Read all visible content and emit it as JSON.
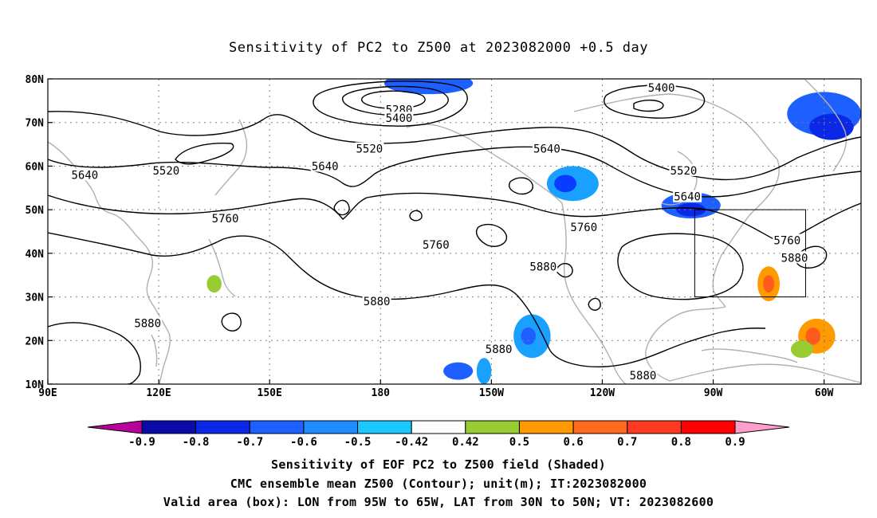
{
  "title": "Sensitivity of PC2 to Z500 at 2023082000 +0.5 day",
  "map": {
    "lon_range": [
      90,
      310
    ],
    "lat_range": [
      10,
      80
    ],
    "lon_ticks": [
      {
        "lon": 90,
        "label": "90E"
      },
      {
        "lon": 120,
        "label": "120E"
      },
      {
        "lon": 150,
        "label": "150E"
      },
      {
        "lon": 180,
        "label": "180"
      },
      {
        "lon": 210,
        "label": "150W"
      },
      {
        "lon": 240,
        "label": "120W"
      },
      {
        "lon": 270,
        "label": "90W"
      },
      {
        "lon": 300,
        "label": "60W"
      }
    ],
    "lat_ticks": [
      {
        "lat": 80,
        "label": "80N"
      },
      {
        "lat": 70,
        "label": "70N"
      },
      {
        "lat": 60,
        "label": "60N"
      },
      {
        "lat": 50,
        "label": "50N"
      },
      {
        "lat": 40,
        "label": "40N"
      },
      {
        "lat": 30,
        "label": "30N"
      },
      {
        "lat": 20,
        "label": "20N"
      },
      {
        "lat": 10,
        "label": "10N"
      }
    ],
    "grid_lons": [
      120,
      150,
      180,
      210,
      240,
      270,
      300
    ],
    "grid_lats": [
      20,
      30,
      40,
      50,
      60,
      70
    ],
    "valid_box": {
      "lon_min": 265,
      "lon_max": 295,
      "lat_min": 30,
      "lat_max": 50
    },
    "contour_labels": [
      {
        "text": "5280",
        "lon": 185,
        "lat": 73
      },
      {
        "text": "5400",
        "lon": 185,
        "lat": 71
      },
      {
        "text": "5400",
        "lon": 256,
        "lat": 78
      },
      {
        "text": "5520",
        "lon": 177,
        "lat": 64
      },
      {
        "text": "5520",
        "lon": 122,
        "lat": 59
      },
      {
        "text": "5520",
        "lon": 262,
        "lat": 59
      },
      {
        "text": "5640",
        "lon": 100,
        "lat": 58
      },
      {
        "text": "5640",
        "lon": 165,
        "lat": 60
      },
      {
        "text": "5640",
        "lon": 225,
        "lat": 64
      },
      {
        "text": "5640",
        "lon": 263,
        "lat": 53
      },
      {
        "text": "5760",
        "lon": 138,
        "lat": 48
      },
      {
        "text": "5760",
        "lon": 195,
        "lat": 42
      },
      {
        "text": "5760",
        "lon": 235,
        "lat": 46
      },
      {
        "text": "5760",
        "lon": 290,
        "lat": 43
      },
      {
        "text": "5880",
        "lon": 224,
        "lat": 37
      },
      {
        "text": "5880",
        "lon": 179,
        "lat": 29
      },
      {
        "text": "5880",
        "lon": 117,
        "lat": 24
      },
      {
        "text": "5880",
        "lon": 212,
        "lat": 18
      },
      {
        "text": "5880",
        "lon": 292,
        "lat": 39
      },
      {
        "text": "5880",
        "lon": 251,
        "lat": 12
      }
    ],
    "shaded_regions": [
      {
        "lon": 193,
        "lat": 79,
        "rx": 12,
        "ry": 2.5,
        "color": "#1e5fff"
      },
      {
        "lon": 300,
        "lat": 72,
        "rx": 10,
        "ry": 5,
        "color": "#1e5fff"
      },
      {
        "lon": 302,
        "lat": 69,
        "rx": 6,
        "ry": 3,
        "color": "#0a28e6"
      },
      {
        "lon": 232,
        "lat": 56,
        "rx": 7,
        "ry": 4,
        "color": "#1aa0ff"
      },
      {
        "lon": 230,
        "lat": 56,
        "rx": 3,
        "ry": 2,
        "color": "#0a3cff"
      },
      {
        "lon": 264,
        "lat": 51,
        "rx": 8,
        "ry": 3,
        "color": "#1e5fff"
      },
      {
        "lon": 264,
        "lat": 50,
        "rx": 4,
        "ry": 1.5,
        "color": "#0a28e6"
      },
      {
        "lon": 221,
        "lat": 21,
        "rx": 5,
        "ry": 5,
        "color": "#1aa0ff"
      },
      {
        "lon": 220,
        "lat": 21,
        "rx": 2,
        "ry": 2,
        "color": "#1e5fff"
      },
      {
        "lon": 201,
        "lat": 13,
        "rx": 4,
        "ry": 2,
        "color": "#1e5fff"
      },
      {
        "lon": 208,
        "lat": 13,
        "rx": 2,
        "ry": 3,
        "color": "#1aa0ff"
      },
      {
        "lon": 285,
        "lat": 33,
        "rx": 3,
        "ry": 4,
        "color": "#ff9a00"
      },
      {
        "lon": 285,
        "lat": 33,
        "rx": 1.5,
        "ry": 2,
        "color": "#ff5a1e"
      },
      {
        "lon": 298,
        "lat": 21,
        "rx": 5,
        "ry": 4,
        "color": "#ff9a00"
      },
      {
        "lon": 297,
        "lat": 21,
        "rx": 2,
        "ry": 2,
        "color": "#ff5a1e"
      },
      {
        "lon": 294,
        "lat": 18,
        "rx": 3,
        "ry": 2,
        "color": "#99cc33"
      },
      {
        "lon": 135,
        "lat": 33,
        "rx": 2,
        "ry": 2,
        "color": "#99cc33"
      }
    ]
  },
  "colorbar": {
    "labels": [
      "-0.9",
      "-0.8",
      "-0.7",
      "-0.6",
      "-0.5",
      "-0.42",
      "0.42",
      "0.5",
      "0.6",
      "0.7",
      "0.8",
      "0.9"
    ],
    "colors": [
      "#b8009a",
      "#0a0aa8",
      "#0a28e6",
      "#1e5fff",
      "#1e8cff",
      "#1ac8ff",
      "#ffffff",
      "#99cc33",
      "#ff9a00",
      "#ff6a1e",
      "#ff3a1e",
      "#ff0000",
      "#ff9ec8"
    ]
  },
  "captions": [
    "Sensitivity of EOF PC2 to Z500 field (Shaded)",
    "CMC ensemble mean Z500 (Contour); unit(m); IT:2023082000",
    "Valid area (box): LON from 95W to 65W, LAT from 30N to 50N; VT: 2023082600"
  ]
}
